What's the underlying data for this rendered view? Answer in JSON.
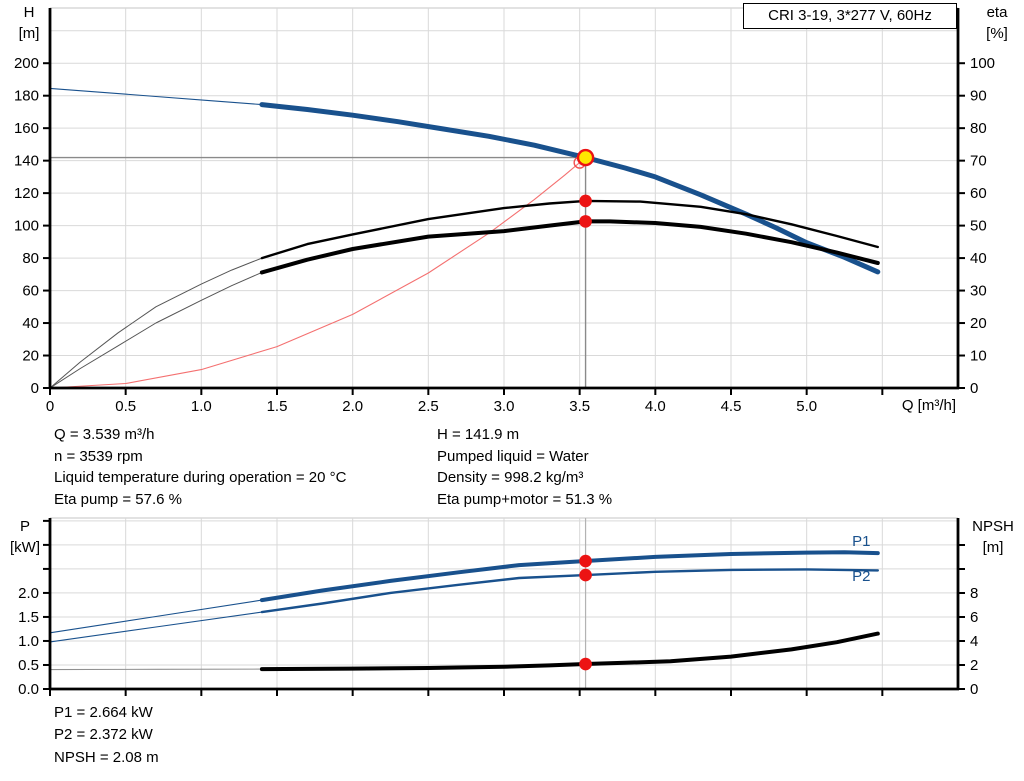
{
  "panel": {
    "title": "CRI 3-19, 3*277 V, 60Hz"
  },
  "colors": {
    "curve_blue": "#19518d",
    "curve_black": "#000000",
    "ext_dark": "#555555",
    "ext_gray": "#909090",
    "system_red": "#f47070",
    "ring_red": "#f25050",
    "dot_red": "#ec1313",
    "duty_yellow": "#ffe600",
    "crosshair_gray": "#8a8a8a",
    "opline_gray": "#b3b3b3",
    "grid_gray": "#d9d9d9",
    "border_gray": "#c4c4c4",
    "axis_black": "#000000",
    "label_blue": "#19518d"
  },
  "annotations": {
    "left": [
      "Q = 3.539 m³/h",
      "n = 3539 rpm",
      "Liquid temperature during operation = 20 °C",
      "Eta pump = 57.6 %"
    ],
    "right": [
      "H = 141.9 m",
      "Pumped liquid = Water",
      "Density = 998.2 kg/m³",
      "Eta pump+motor = 51.3 %"
    ],
    "bottom": [
      "P1 = 2.664 kW",
      "P2 = 2.372 kW",
      "NPSH = 2.08 m"
    ]
  },
  "duty_point": {
    "Q_m3h": 3.539,
    "H_m": 141.9,
    "eta_pump_pct": 57.6,
    "eta_pump_motor_pct": 51.3,
    "P1_kW": 2.664,
    "P2_kW": 2.372,
    "NPSH_m": 2.08
  },
  "chart_data": [
    {
      "type": "line",
      "name": "head-efficiency-chart",
      "x_axis": {
        "label": "Q [m³/h]",
        "min": 0,
        "max": 6,
        "ticks": [
          {
            "v": 0,
            "t": "0"
          },
          {
            "v": 0.5,
            "t": "0.5"
          },
          {
            "v": 1,
            "t": "1.0"
          },
          {
            "v": 1.5,
            "t": "1.5"
          },
          {
            "v": 2,
            "t": "2.0"
          },
          {
            "v": 2.5,
            "t": "2.5"
          },
          {
            "v": 3,
            "t": "3.0"
          },
          {
            "v": 3.5,
            "t": "3.5"
          },
          {
            "v": 4,
            "t": "4.0"
          },
          {
            "v": 4.5,
            "t": "4.5"
          },
          {
            "v": 5,
            "t": "5.0"
          },
          {
            "v": 5.5,
            "t": ""
          }
        ],
        "grid": [
          0.5,
          1,
          1.5,
          2,
          2.5,
          3,
          3.5,
          4,
          4.5,
          5,
          5.5
        ]
      },
      "y_left": {
        "title_line1": "H",
        "title_line2": "[m]",
        "min": 0,
        "max": 234,
        "ticks": [
          {
            "v": 0,
            "t": "0"
          },
          {
            "v": 20,
            "t": "20"
          },
          {
            "v": 40,
            "t": "40"
          },
          {
            "v": 60,
            "t": "60"
          },
          {
            "v": 80,
            "t": "80"
          },
          {
            "v": 100,
            "t": "100"
          },
          {
            "v": 120,
            "t": "120"
          },
          {
            "v": 140,
            "t": "140"
          },
          {
            "v": 160,
            "t": "160"
          },
          {
            "v": 180,
            "t": "180"
          },
          {
            "v": 200,
            "t": "200"
          }
        ],
        "grid": [
          20,
          40,
          60,
          80,
          100,
          120,
          140,
          160,
          180,
          200,
          220
        ]
      },
      "y_right": {
        "title_line1": "eta",
        "title_line2": "[%]",
        "min": 0,
        "max": 117,
        "ticks": [
          {
            "v": 0,
            "t": "0"
          },
          {
            "v": 10,
            "t": "10"
          },
          {
            "v": 20,
            "t": "20"
          },
          {
            "v": 30,
            "t": "30"
          },
          {
            "v": 40,
            "t": "40"
          },
          {
            "v": 50,
            "t": "50"
          },
          {
            "v": 60,
            "t": "60"
          },
          {
            "v": 70,
            "t": "70"
          },
          {
            "v": 80,
            "t": "80"
          },
          {
            "v": 90,
            "t": "90"
          },
          {
            "v": 100,
            "t": "100"
          }
        ]
      },
      "lines": [
        {
          "name": "duty-h-line",
          "axis": "left",
          "color_key": "crosshair_gray",
          "width": 1.4,
          "points": [
            [
              0,
              141.9
            ],
            [
              3.539,
              141.9
            ]
          ]
        },
        {
          "name": "duty-v-line",
          "axis": "left",
          "color_key": "crosshair_gray",
          "width": 1.4,
          "points": [
            [
              3.539,
              141.9
            ],
            [
              3.539,
              0
            ]
          ]
        }
      ],
      "series": [
        {
          "name": "head-curve-extension",
          "axis": "left",
          "color_key": "curve_blue",
          "width": 1.1,
          "points": [
            [
              0,
              184.5
            ],
            [
              0.35,
              182
            ],
            [
              0.7,
              179.5
            ],
            [
              1.05,
              177
            ],
            [
              1.4,
              174.5
            ]
          ]
        },
        {
          "name": "head-curve",
          "axis": "left",
          "color_key": "curve_blue",
          "width": 5,
          "points": [
            [
              1.4,
              174.5
            ],
            [
              1.7,
              171.5
            ],
            [
              2.0,
              168
            ],
            [
              2.3,
              164
            ],
            [
              2.6,
              159.5
            ],
            [
              2.9,
              155
            ],
            [
              3.2,
              149.5
            ],
            [
              3.539,
              141.9
            ],
            [
              3.8,
              135.5
            ],
            [
              4.0,
              130
            ],
            [
              4.3,
              119
            ],
            [
              4.6,
              107
            ],
            [
              4.8,
              98.5
            ],
            [
              5.0,
              89.5
            ],
            [
              5.25,
              80.5
            ],
            [
              5.47,
              71.5
            ]
          ]
        },
        {
          "name": "system-curve",
          "axis": "left",
          "color_key": "system_red",
          "width": 1.1,
          "points": [
            [
              0,
              0
            ],
            [
              0.5,
              2.8
            ],
            [
              1.0,
              11.3
            ],
            [
              1.5,
              25.5
            ],
            [
              2.0,
              45.3
            ],
            [
              2.5,
              70.8
            ],
            [
              2.9,
              95.3
            ],
            [
              3.2,
              116
            ],
            [
              3.4,
              131
            ],
            [
              3.539,
              141.9
            ]
          ]
        },
        {
          "name": "eta-pump-curve-extension",
          "axis": "right",
          "color_key": "ext_dark",
          "width": 1,
          "points": [
            [
              0,
              0
            ],
            [
              0.2,
              8
            ],
            [
              0.45,
              17
            ],
            [
              0.7,
              25
            ],
            [
              1.0,
              32
            ],
            [
              1.2,
              36.3
            ],
            [
              1.4,
              40
            ]
          ]
        },
        {
          "name": "eta-pump-curve",
          "axis": "right",
          "color_key": "curve_black",
          "width": 2.4,
          "points": [
            [
              1.4,
              40
            ],
            [
              1.7,
              44.3
            ],
            [
              2.0,
              47.3
            ],
            [
              2.5,
              52
            ],
            [
              3.0,
              55.4
            ],
            [
              3.3,
              56.8
            ],
            [
              3.539,
              57.6
            ],
            [
              3.9,
              57.4
            ],
            [
              4.3,
              55.8
            ],
            [
              4.6,
              53.5
            ],
            [
              4.9,
              50.4
            ],
            [
              5.2,
              46.8
            ],
            [
              5.47,
              43.4
            ]
          ]
        },
        {
          "name": "eta-pump-motor-curve-extension",
          "axis": "right",
          "color_key": "ext_dark",
          "width": 1,
          "points": [
            [
              0,
              0
            ],
            [
              0.2,
              6
            ],
            [
              0.45,
              13
            ],
            [
              0.7,
              20
            ],
            [
              1.0,
              27
            ],
            [
              1.2,
              31.5
            ],
            [
              1.4,
              35.6
            ]
          ]
        },
        {
          "name": "eta-pump-motor-curve",
          "axis": "right",
          "color_key": "curve_black",
          "width": 4,
          "points": [
            [
              1.4,
              35.6
            ],
            [
              1.7,
              39.5
            ],
            [
              2.0,
              42.8
            ],
            [
              2.5,
              46.6
            ],
            [
              3.0,
              48.3
            ],
            [
              3.3,
              50
            ],
            [
              3.539,
              51.3
            ],
            [
              3.7,
              51.3
            ],
            [
              4.0,
              50.8
            ],
            [
              4.3,
              49.6
            ],
            [
              4.6,
              47.5
            ],
            [
              4.9,
              44.9
            ],
            [
              5.2,
              41.7
            ],
            [
              5.47,
              38.5
            ]
          ]
        }
      ],
      "markers": [
        {
          "name": "requested-duty-ring",
          "type": "ring",
          "axis": "left",
          "q": 3.5,
          "v": 138.8
        },
        {
          "name": "duty-point",
          "type": "duty",
          "axis": "left",
          "q": 3.539,
          "v": 141.9
        },
        {
          "name": "eta-pump-point",
          "type": "dot",
          "axis": "right",
          "q": 3.539,
          "v": 57.6
        },
        {
          "name": "eta-pump-motor-point",
          "type": "dot",
          "axis": "right",
          "q": 3.539,
          "v": 51.3
        }
      ],
      "labels": []
    },
    {
      "type": "line",
      "name": "power-npsh-chart",
      "x_axis": {
        "label": "",
        "min": 0,
        "max": 6,
        "ticks": [
          {
            "v": 0,
            "t": ""
          },
          {
            "v": 0.5,
            "t": ""
          },
          {
            "v": 1,
            "t": ""
          },
          {
            "v": 1.5,
            "t": ""
          },
          {
            "v": 2,
            "t": ""
          },
          {
            "v": 2.5,
            "t": ""
          },
          {
            "v": 3,
            "t": ""
          },
          {
            "v": 3.5,
            "t": ""
          },
          {
            "v": 4,
            "t": ""
          },
          {
            "v": 4.5,
            "t": ""
          },
          {
            "v": 5,
            "t": ""
          },
          {
            "v": 5.5,
            "t": ""
          }
        ],
        "grid": [
          0.5,
          1,
          1.5,
          2,
          2.5,
          3,
          3.5,
          4,
          4.5,
          5,
          5.5
        ]
      },
      "y_left": {
        "title_line1": "P",
        "title_line2": "[kW]",
        "min": 0,
        "max": 3.56,
        "ticks": [
          {
            "v": 0,
            "t": "0.0"
          },
          {
            "v": 0.5,
            "t": "0.5"
          },
          {
            "v": 1,
            "t": "1.0"
          },
          {
            "v": 1.5,
            "t": "1.5"
          },
          {
            "v": 2,
            "t": "2.0"
          },
          {
            "v": 2.5,
            "t": ""
          },
          {
            "v": 3,
            "t": ""
          },
          {
            "v": 3.5,
            "t": ""
          }
        ],
        "grid": [
          0.5,
          1,
          1.5,
          2,
          2.5,
          3,
          3.5
        ]
      },
      "y_right": {
        "title_line1": "NPSH",
        "title_line2": "[m]",
        "min": 0,
        "max": 14.25,
        "ticks": [
          {
            "v": 0,
            "t": "0"
          },
          {
            "v": 2,
            "t": "2"
          },
          {
            "v": 4,
            "t": "4"
          },
          {
            "v": 6,
            "t": "6"
          },
          {
            "v": 8,
            "t": "8"
          },
          {
            "v": 10,
            "t": ""
          },
          {
            "v": 12,
            "t": ""
          }
        ]
      },
      "lines": [
        {
          "name": "duty-v-line",
          "axis": "left",
          "color_key": "opline_gray",
          "width": 1.2,
          "points": [
            [
              3.539,
              0
            ],
            [
              3.539,
              3.56
            ]
          ]
        }
      ],
      "series": [
        {
          "name": "p1-curve-extension",
          "axis": "left",
          "color_key": "curve_blue",
          "width": 1.1,
          "points": [
            [
              0,
              1.17
            ],
            [
              0.7,
              1.51
            ],
            [
              1.4,
              1.85
            ]
          ]
        },
        {
          "name": "p1-curve",
          "axis": "left",
          "color_key": "curve_blue",
          "width": 4,
          "points": [
            [
              1.4,
              1.85
            ],
            [
              1.8,
              2.05
            ],
            [
              2.25,
              2.25
            ],
            [
              2.7,
              2.43
            ],
            [
              3.1,
              2.58
            ],
            [
              3.539,
              2.664
            ],
            [
              4.0,
              2.75
            ],
            [
              4.5,
              2.81
            ],
            [
              5.0,
              2.84
            ],
            [
              5.25,
              2.845
            ],
            [
              5.47,
              2.83
            ]
          ]
        },
        {
          "name": "p2-curve-extension",
          "axis": "left",
          "color_key": "curve_blue",
          "width": 1.1,
          "points": [
            [
              0,
              0.98
            ],
            [
              0.7,
              1.29
            ],
            [
              1.4,
              1.6
            ]
          ]
        },
        {
          "name": "p2-curve",
          "axis": "left",
          "color_key": "curve_blue",
          "width": 2.4,
          "points": [
            [
              1.4,
              1.6
            ],
            [
              1.8,
              1.78
            ],
            [
              2.25,
              2.0
            ],
            [
              2.7,
              2.17
            ],
            [
              3.1,
              2.31
            ],
            [
              3.539,
              2.372
            ],
            [
              4.0,
              2.44
            ],
            [
              4.5,
              2.48
            ],
            [
              5.0,
              2.49
            ],
            [
              5.47,
              2.47
            ]
          ]
        },
        {
          "name": "npsh-curve-extension",
          "axis": "right",
          "color_key": "ext_gray",
          "width": 1.1,
          "points": [
            [
              0,
              1.62
            ],
            [
              0.7,
              1.64
            ],
            [
              1.4,
              1.66
            ]
          ]
        },
        {
          "name": "npsh-curve",
          "axis": "right",
          "color_key": "curve_black",
          "width": 4,
          "points": [
            [
              1.4,
              1.66
            ],
            [
              2.0,
              1.7
            ],
            [
              2.5,
              1.75
            ],
            [
              3.0,
              1.85
            ],
            [
              3.3,
              1.97
            ],
            [
              3.539,
              2.08
            ],
            [
              3.8,
              2.18
            ],
            [
              4.1,
              2.32
            ],
            [
              4.5,
              2.7
            ],
            [
              4.9,
              3.3
            ],
            [
              5.2,
              3.9
            ],
            [
              5.47,
              4.62
            ]
          ]
        }
      ],
      "markers": [
        {
          "name": "p1-point",
          "type": "dot",
          "axis": "left",
          "q": 3.539,
          "v": 2.664
        },
        {
          "name": "p2-point",
          "type": "dot",
          "axis": "left",
          "q": 3.539,
          "v": 2.372
        },
        {
          "name": "npsh-point",
          "type": "dot",
          "axis": "right",
          "q": 3.539,
          "v": 2.08
        }
      ],
      "labels": [
        {
          "name": "p1-label",
          "text": "P1",
          "axis": "left",
          "q": 5.3,
          "v": 3.083,
          "color_key": "label_blue"
        },
        {
          "name": "p2-label",
          "text": "P2",
          "axis": "left",
          "q": 5.3,
          "v": 2.354,
          "color_key": "label_blue"
        }
      ]
    }
  ]
}
